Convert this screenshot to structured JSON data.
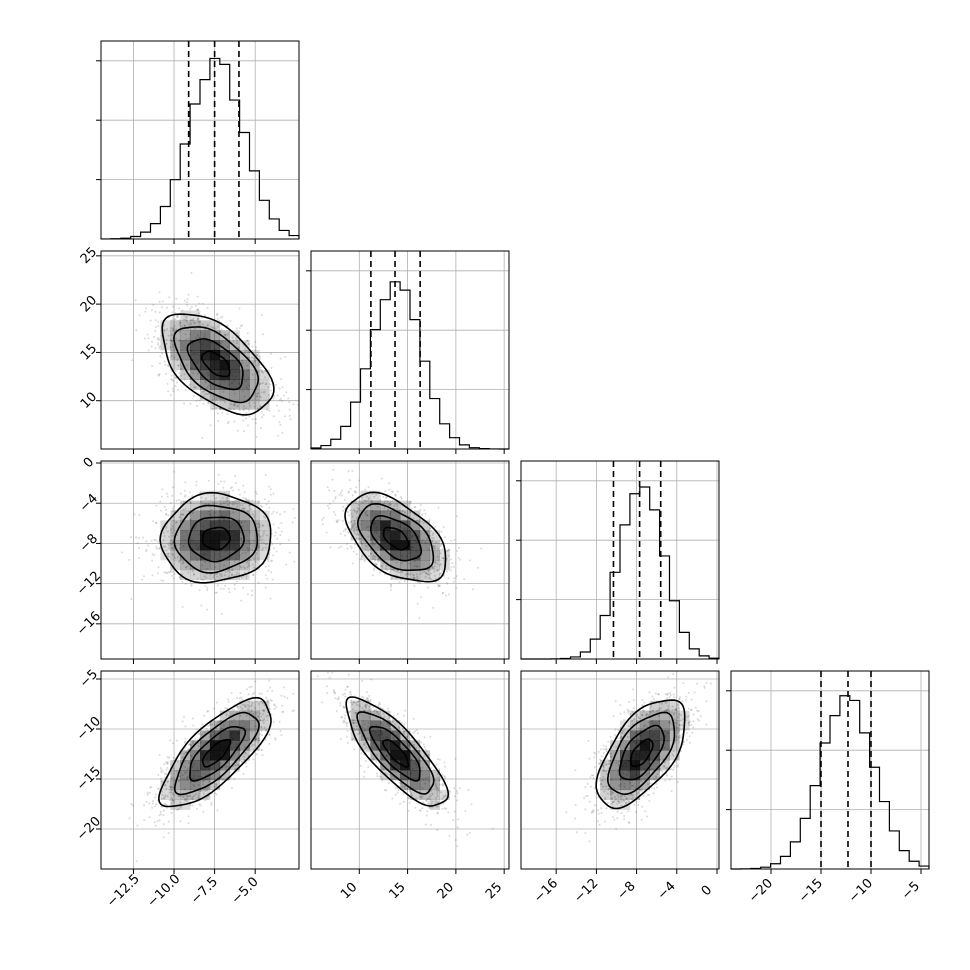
{
  "chart_data": {
    "type": "corner",
    "params": [
      {
        "mean": -7.4,
        "sd": 1.7,
        "range": [
          -14.5,
          -2.3
        ],
        "ticks": [
          -12.5,
          -10.0,
          -7.5,
          -5.0
        ],
        "tick_labels": [
          "−12.5",
          "−10.0",
          "−7.5",
          "−5.0"
        ],
        "quantiles": [
          -9.1,
          -7.5,
          -6.0
        ],
        "hist_peak": 0.9
      },
      {
        "mean": 13.8,
        "sd": 2.6,
        "range": [
          5.0,
          25.5
        ],
        "ticks": [
          10,
          15,
          20,
          25
        ],
        "tick_labels": [
          "10",
          "15",
          "20",
          "25"
        ],
        "quantiles": [
          11.2,
          13.7,
          16.3
        ],
        "hist_peak": 0.85
      },
      {
        "mean": -7.5,
        "sd": 2.2,
        "range": [
          -19.5,
          0.2
        ],
        "ticks": [
          -16,
          -12,
          -8,
          -4,
          0
        ],
        "tick_labels": [
          "−16",
          "−12",
          "−8",
          "−4",
          "0"
        ],
        "quantiles": [
          -10.3,
          -7.7,
          -5.6
        ],
        "hist_peak": 0.88
      },
      {
        "mean": -12.4,
        "sd": 2.7,
        "range": [
          -24.0,
          -4.2
        ],
        "ticks": [
          -20,
          -15,
          -10,
          -5
        ],
        "tick_labels": [
          "−20",
          "−15",
          "−10",
          "−5"
        ],
        "quantiles": [
          -15.0,
          -12.3,
          -10.0
        ],
        "hist_peak": 0.87
      }
    ],
    "correlations": [
      [
        1,
        -0.55,
        0.05,
        0.75
      ],
      [
        -0.55,
        1,
        -0.5,
        -0.8
      ],
      [
        0.05,
        -0.5,
        1,
        0.6
      ],
      [
        0.75,
        -0.8,
        0.6,
        1
      ]
    ],
    "hist_ytick_fractions": [
      0.3,
      0.6,
      0.9
    ],
    "contour_levels_sigma": [
      0.5,
      1.0,
      1.5,
      2.0
    ],
    "grid": true,
    "colors": {
      "line": "#000000",
      "grid": "#b0b0b0",
      "density": "#000000"
    }
  }
}
